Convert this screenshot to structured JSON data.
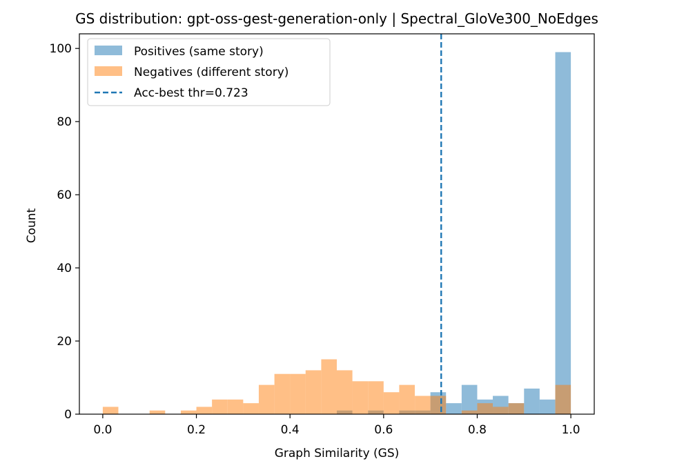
{
  "chart_data": {
    "type": "bar",
    "subtype": "overlaid-histogram",
    "title": "GS distribution: gpt-oss-gest-generation-only | Spectral_GloVe300_NoEdges",
    "xlabel": "Graph Similarity (GS)",
    "ylabel": "Count",
    "xlim": [
      -0.05,
      1.05
    ],
    "ylim": [
      0,
      104
    ],
    "xticks": [
      0.0,
      0.2,
      0.4,
      0.6,
      0.8,
      1.0
    ],
    "xtick_labels": [
      "0.0",
      "0.2",
      "0.4",
      "0.6",
      "0.8",
      "1.0"
    ],
    "yticks": [
      0,
      20,
      40,
      60,
      80,
      100
    ],
    "ytick_labels": [
      "0",
      "20",
      "40",
      "60",
      "80",
      "100"
    ],
    "bin_width": 0.0333,
    "bin_starts": [
      0.0,
      0.0333,
      0.0667,
      0.1,
      0.1333,
      0.1667,
      0.2,
      0.2333,
      0.2667,
      0.3,
      0.3333,
      0.3667,
      0.4,
      0.4333,
      0.4667,
      0.5,
      0.5333,
      0.5667,
      0.6,
      0.6333,
      0.6667,
      0.7,
      0.7333,
      0.7667,
      0.8,
      0.8333,
      0.8667,
      0.9,
      0.9333,
      0.9667
    ],
    "series": [
      {
        "name": "Positives (same story)",
        "color": "#1f77b4",
        "alpha": 0.5,
        "bin_starts": [
          0.5,
          0.5667,
          0.6333,
          0.6667,
          0.7,
          0.7333,
          0.7667,
          0.8,
          0.8333,
          0.8667,
          0.9,
          0.9333,
          0.9667
        ],
        "values": [
          1,
          1,
          1,
          1,
          6,
          3,
          8,
          4,
          5,
          3,
          7,
          4,
          99
        ]
      },
      {
        "name": "Negatives (different story)",
        "color": "#ff7f0e",
        "alpha": 0.5,
        "bin_starts": [
          0.0,
          0.1,
          0.1667,
          0.2,
          0.2333,
          0.2667,
          0.3,
          0.3333,
          0.3667,
          0.4,
          0.4333,
          0.4667,
          0.5,
          0.5333,
          0.5667,
          0.6,
          0.6333,
          0.6667,
          0.7,
          0.7667,
          0.8,
          0.8333,
          0.8667,
          0.9667
        ],
        "values": [
          2,
          1,
          1,
          2,
          4,
          4,
          3,
          8,
          11,
          11,
          12,
          15,
          12,
          9,
          9,
          6,
          8,
          5,
          5,
          1,
          3,
          2,
          3,
          8
        ]
      }
    ],
    "threshold": {
      "label": "Acc-best thr=0.723",
      "value": 0.723,
      "color": "#1f77b4",
      "style": "dashed"
    },
    "legend_position": "top-left",
    "grid": false
  }
}
